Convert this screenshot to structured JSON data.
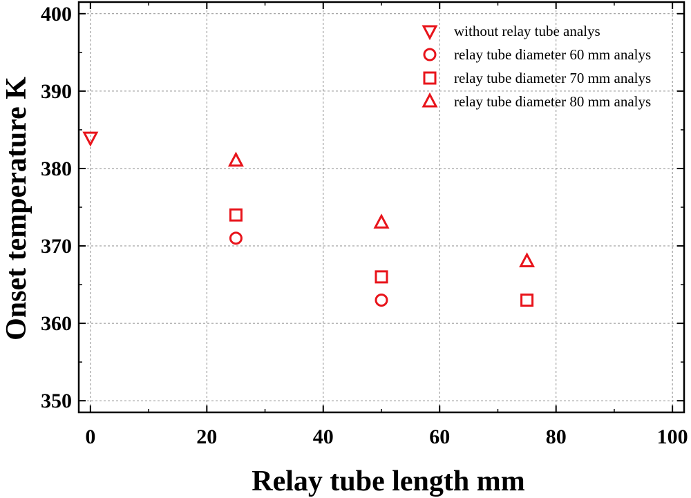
{
  "chart_data": {
    "type": "scatter",
    "xlabel": "Relay tube length  mm",
    "ylabel": "Onset temperature  K",
    "xlim": [
      -2,
      102
    ],
    "ylim": [
      348.5,
      401.5
    ],
    "xticks": [
      0,
      20,
      40,
      60,
      80,
      100
    ],
    "yticks": [
      350,
      360,
      370,
      380,
      390,
      400
    ],
    "grid": true,
    "legend_position": "top-right",
    "marker_color": "#e8141b",
    "series": [
      {
        "name": "without relay tube analys",
        "marker": "triangle-down",
        "points": [
          {
            "x": 0,
            "y": 384
          }
        ]
      },
      {
        "name": "relay tube diameter 60 mm analys",
        "marker": "circle",
        "points": [
          {
            "x": 25,
            "y": 371
          },
          {
            "x": 50,
            "y": 363
          }
        ]
      },
      {
        "name": "relay tube diameter 70 mm analys",
        "marker": "square",
        "points": [
          {
            "x": 25,
            "y": 374
          },
          {
            "x": 50,
            "y": 366
          },
          {
            "x": 75,
            "y": 363
          }
        ]
      },
      {
        "name": "relay tube diameter 80 mm analys",
        "marker": "triangle-up",
        "points": [
          {
            "x": 25,
            "y": 381
          },
          {
            "x": 50,
            "y": 373
          },
          {
            "x": 75,
            "y": 368
          }
        ]
      }
    ]
  }
}
